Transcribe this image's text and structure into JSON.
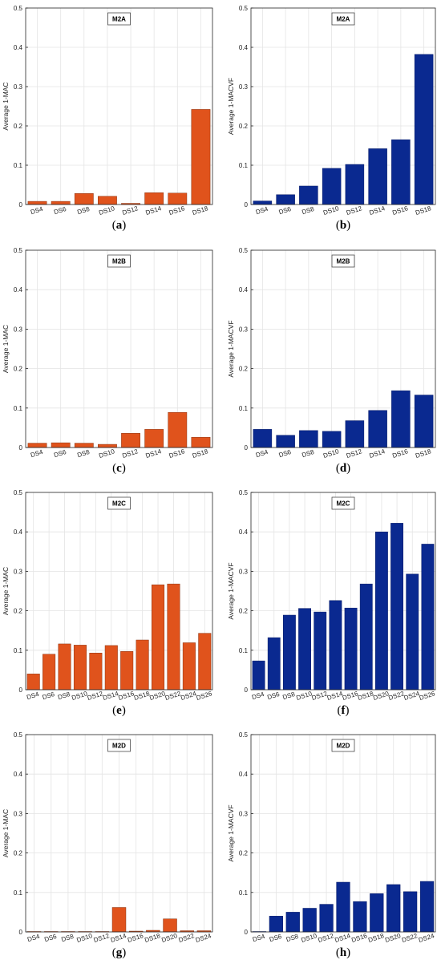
{
  "colors": {
    "orange": "#e0531c",
    "orange_edge": "#8a3210",
    "blue": "#0a2990",
    "blue_edge": "#061a66",
    "grid": "#e4e4e4",
    "axis": "#262626"
  },
  "chart_data": [
    {
      "id": "a",
      "type": "bar",
      "title": "M2A",
      "ylabel": "Average 1-MAC",
      "caption_letter": "a",
      "caption_prefix": "(",
      "caption_suffix": ")",
      "ylim": [
        0,
        0.5
      ],
      "yticks": [
        "0",
        "0.1",
        "0.2",
        "0.3",
        "0.4",
        "0.5"
      ],
      "grid": true,
      "color": "orange",
      "categories": [
        "DS4",
        "DS6",
        "DS8",
        "DS10",
        "DS12",
        "DS14",
        "DS16",
        "DS18"
      ],
      "values": [
        0.008,
        0.008,
        0.028,
        0.021,
        0.003,
        0.03,
        0.029,
        0.242
      ]
    },
    {
      "id": "b",
      "type": "bar",
      "title": "M2A",
      "ylabel": "Average 1-MACVF",
      "caption_letter": "b",
      "caption_prefix": "(",
      "caption_suffix": ")",
      "ylim": [
        0,
        0.5
      ],
      "yticks": [
        "0",
        "0.1",
        "0.2",
        "0.3",
        "0.4",
        "0.5"
      ],
      "grid": true,
      "color": "blue",
      "categories": [
        "DS4",
        "DS6",
        "DS8",
        "DS10",
        "DS12",
        "DS14",
        "DS16",
        "DS18"
      ],
      "values": [
        0.009,
        0.025,
        0.047,
        0.092,
        0.102,
        0.142,
        0.165,
        0.382
      ]
    },
    {
      "id": "c",
      "type": "bar",
      "title": "M2B",
      "ylabel": "Average 1-MAC",
      "caption_letter": "c",
      "caption_prefix": "(",
      "caption_suffix": ")",
      "ylim": [
        0,
        0.5
      ],
      "yticks": [
        "0",
        "0.1",
        "0.2",
        "0.3",
        "0.4",
        "0.5"
      ],
      "grid": true,
      "color": "orange",
      "categories": [
        "DS4",
        "DS6",
        "DS8",
        "DS10",
        "DS12",
        "DS14",
        "DS16",
        "DS18"
      ],
      "values": [
        0.011,
        0.012,
        0.011,
        0.008,
        0.036,
        0.046,
        0.089,
        0.026
      ]
    },
    {
      "id": "d",
      "type": "bar",
      "title": "M2B",
      "ylabel": "Average 1-MACVF",
      "caption_letter": "d",
      "caption_prefix": "(",
      "caption_suffix": ")",
      "ylim": [
        0,
        0.5
      ],
      "yticks": [
        "0",
        "0.1",
        "0.2",
        "0.3",
        "0.4",
        "0.5"
      ],
      "grid": true,
      "color": "blue",
      "categories": [
        "DS4",
        "DS6",
        "DS8",
        "DS10",
        "DS12",
        "DS14",
        "DS16",
        "DS18"
      ],
      "values": [
        0.046,
        0.031,
        0.043,
        0.041,
        0.068,
        0.094,
        0.144,
        0.133
      ]
    },
    {
      "id": "e",
      "type": "bar",
      "title": "M2C",
      "ylabel": "Average 1-MAC",
      "caption_letter": "e",
      "caption_prefix": "(",
      "caption_suffix": ")",
      "ylim": [
        0,
        0.5
      ],
      "yticks": [
        "0",
        "0.1",
        "0.2",
        "0.3",
        "0.4",
        "0.5"
      ],
      "grid": true,
      "color": "orange",
      "categories": [
        "DS4",
        "DS6",
        "DS8",
        "DS10",
        "DS12",
        "DS14",
        "DS16",
        "DS18",
        "DS20",
        "DS22",
        "DS24",
        "DS26"
      ],
      "values": [
        0.04,
        0.09,
        0.116,
        0.113,
        0.093,
        0.112,
        0.097,
        0.126,
        0.266,
        0.268,
        0.119,
        0.143
      ]
    },
    {
      "id": "f",
      "type": "bar",
      "title": "M2C",
      "ylabel": "Average 1-MACVF",
      "caption_letter": "f",
      "caption_prefix": "(",
      "caption_suffix": ")",
      "ylim": [
        0,
        0.5
      ],
      "yticks": [
        "0",
        "0.1",
        "0.2",
        "0.3",
        "0.4",
        "0.5"
      ],
      "grid": true,
      "color": "blue",
      "categories": [
        "DS4",
        "DS6",
        "DS8",
        "DS10",
        "DS12",
        "DS14",
        "DS16",
        "DS18",
        "DS20",
        "DS22",
        "DS24",
        "DS26"
      ],
      "values": [
        0.073,
        0.132,
        0.189,
        0.206,
        0.197,
        0.226,
        0.207,
        0.268,
        0.4,
        0.422,
        0.293,
        0.369
      ]
    },
    {
      "id": "g",
      "type": "bar",
      "title": "M2D",
      "ylabel": "Average 1-MAC",
      "caption_letter": "g",
      "caption_prefix": "(",
      "caption_suffix": ")",
      "ylim": [
        0,
        0.5
      ],
      "yticks": [
        "0",
        "0.1",
        "0.2",
        "0.3",
        "0.4",
        "0.5"
      ],
      "grid": true,
      "color": "orange",
      "categories": [
        "DS4",
        "DS6",
        "DS8",
        "DS10",
        "DS12",
        "DS14",
        "DS16",
        "DS18",
        "DS20",
        "DS22",
        "DS24"
      ],
      "values": [
        0.001,
        0.001,
        0.001,
        0.001,
        0.001,
        0.062,
        0.002,
        0.004,
        0.033,
        0.003,
        0.003
      ]
    },
    {
      "id": "h",
      "type": "bar",
      "title": "M2D",
      "ylabel": "Average 1-MACVF",
      "caption_letter": "h",
      "caption_prefix": "(",
      "caption_suffix": ")",
      "ylim": [
        0,
        0.5
      ],
      "yticks": [
        "0",
        "0.1",
        "0.2",
        "0.3",
        "0.4",
        "0.5"
      ],
      "grid": true,
      "color": "blue",
      "categories": [
        "DS4",
        "DS6",
        "DS8",
        "DS10",
        "DS12",
        "DS14",
        "DS16",
        "DS18",
        "DS20",
        "DS22",
        "DS24"
      ],
      "values": [
        0.001,
        0.04,
        0.05,
        0.06,
        0.07,
        0.126,
        0.077,
        0.097,
        0.12,
        0.102,
        0.128
      ]
    }
  ]
}
